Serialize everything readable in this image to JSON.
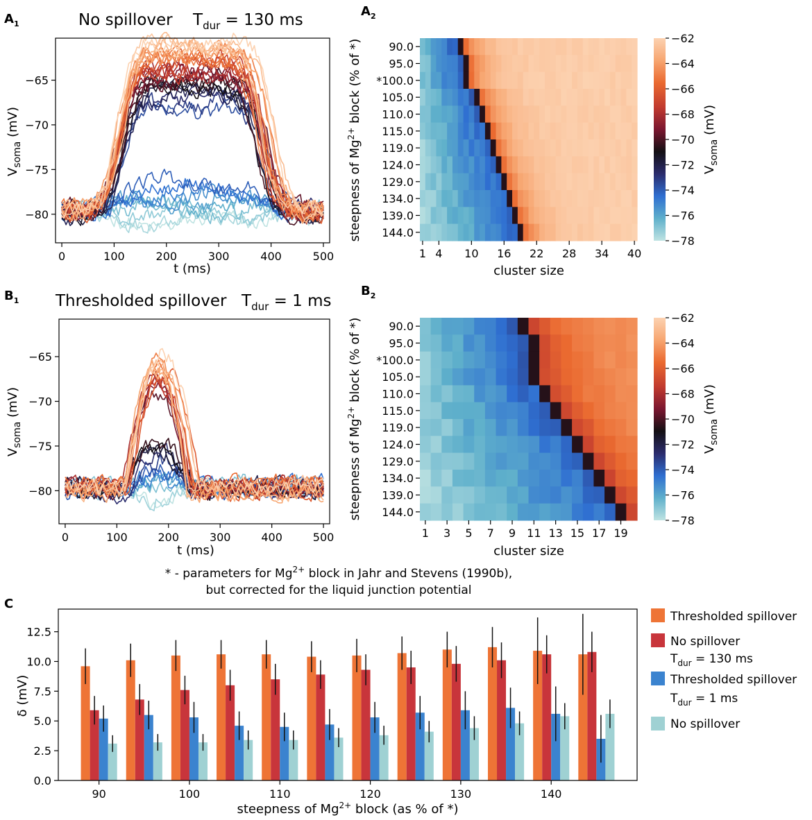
{
  "colors": {
    "orange": "#ee7436",
    "red": "#c8353b",
    "blue": "#3b83cf",
    "light_blue": "#9fd1d3",
    "err": "#111111"
  },
  "colormap": [
    "#bfe3e2",
    "#5fb0cb",
    "#2f6fd1",
    "#2b2c6d",
    "#141014",
    "#7b1730",
    "#c23b2f",
    "#ea6a30",
    "#f7a671",
    "#fcd2b1"
  ],
  "chart_data": [
    {
      "id": "A1",
      "type": "line",
      "panel_label": "A",
      "panel_sub": "1",
      "title_left": "No spillover",
      "title_right_prefix": "T",
      "title_right_sub": "dur",
      "title_right_suffix": " = 130 ms",
      "xlabel": "t (ms)",
      "ylabel_main": "V",
      "ylabel_sub": "soma",
      "ylabel_unit": " (mV)",
      "xlim": [
        -12,
        512
      ],
      "ylim": [
        -83.2,
        -60.3
      ],
      "xticks": [
        0,
        100,
        200,
        300,
        400,
        500
      ],
      "xtick_labels": [
        "0",
        "100",
        "200",
        "300",
        "400",
        "500"
      ],
      "yticks": [
        -65,
        -70,
        -75,
        -80
      ],
      "ytick_labels": [
        "−65",
        "−70",
        "−75",
        "−80"
      ],
      "onset": 112,
      "offset": 385,
      "peaks": [
        -81.0,
        -80.6,
        -80.2,
        -79.5,
        -79.0,
        -78.5,
        -78.0,
        -77.5,
        -77.0,
        -76.5,
        -68.0,
        -67.5,
        -67.0,
        -66.5,
        -66.0,
        -65.8,
        -65.5,
        -65.2,
        -65.0,
        -64.8,
        -64.5,
        -64.3,
        -64.0,
        -63.8,
        -63.5,
        -63.2,
        -63.0,
        -62.8,
        -62.5,
        -62.3,
        -62.0,
        -61.8,
        -61.6,
        -61.4,
        -61.2,
        -61.0,
        -60.9
      ]
    },
    {
      "id": "B1",
      "type": "line",
      "panel_label": "B",
      "panel_sub": "1",
      "title_left": "Thresholded spillover",
      "title_right_prefix": "T",
      "title_right_sub": "dur",
      "title_right_suffix": " = 1 ms",
      "xlabel": "t (ms)",
      "ylabel_main": "V",
      "ylabel_sub": "soma",
      "ylabel_unit": " (mV)",
      "xlim": [
        -12,
        512
      ],
      "ylim": [
        -83.7,
        -60.8
      ],
      "xticks": [
        0,
        100,
        200,
        300,
        400,
        500
      ],
      "xtick_labels": [
        "0",
        "100",
        "200",
        "300",
        "400",
        "500"
      ],
      "yticks": [
        -65,
        -70,
        -75,
        -80
      ],
      "ytick_labels": [
        "−65",
        "−70",
        "−75",
        "−80"
      ],
      "onset": 115,
      "offset": 248,
      "peaks": [
        -81.0,
        -80.5,
        -80.0,
        -79.5,
        -79.0,
        -78.5,
        -78.0,
        -77.5,
        -77.0,
        -76.5,
        -76.0,
        -75.5,
        -75.0,
        -74.0,
        -69.0,
        -68.5,
        -68.0,
        -67.5,
        -67.3,
        -67.0,
        -66.8,
        -66.5,
        -66.2,
        -66.0,
        -65.8,
        -65.5,
        -65.3,
        -65.0
      ]
    },
    {
      "id": "A2",
      "type": "heatmap",
      "panel_label": "A",
      "panel_sub": "2",
      "ylabel": "steepness of Mg2+ block (% of *)",
      "xlabel": "cluster size",
      "rows": [
        "90.0",
        "95.0",
        "*100.0",
        "105.0",
        "110.0",
        "115.0",
        "119.0",
        "124.0",
        "129.0",
        "134.0",
        "139.0",
        "144.0"
      ],
      "n_cols": 40,
      "xtick_positions": [
        1,
        4,
        10,
        16,
        22,
        28,
        34,
        40
      ],
      "xtick_labels": [
        "1",
        "4",
        "10",
        "16",
        "22",
        "28",
        "34",
        "40"
      ],
      "thresholds": [
        8,
        9,
        9,
        11,
        12,
        13,
        14,
        15,
        16,
        17,
        18,
        19
      ],
      "vmin": -78,
      "vmax": -62,
      "colorbar_label": "Vsoma (mV)",
      "colorbar_ticks": [
        -62,
        -64,
        -66,
        -68,
        -70,
        -72,
        -74,
        -76,
        -78
      ],
      "colorbar_tick_labels": [
        "−62",
        "−64",
        "−66",
        "−68",
        "−70",
        "−72",
        "−74",
        "−76",
        "−78"
      ]
    },
    {
      "id": "B2",
      "type": "heatmap",
      "panel_label": "B",
      "panel_sub": "2",
      "ylabel": "steepness of Mg2+ block (% of *)",
      "xlabel": "cluster size",
      "rows": [
        "90.0",
        "95.0",
        "*100.0",
        "105.0",
        "110.0",
        "115.0",
        "119.0",
        "124.0",
        "129.0",
        "134.0",
        "139.0",
        "144.0"
      ],
      "n_cols": 20,
      "xtick_positions": [
        1,
        3,
        5,
        7,
        9,
        11,
        13,
        15,
        17,
        19
      ],
      "xtick_labels": [
        "1",
        "3",
        "5",
        "7",
        "9",
        "11",
        "13",
        "15",
        "17",
        "19"
      ],
      "thresholds": [
        10,
        11,
        11,
        11,
        12,
        13,
        14,
        15,
        16,
        17,
        18,
        19
      ],
      "vmin": -78,
      "vmax": -62,
      "colorbar_label": "Vsoma (mV)",
      "colorbar_ticks": [
        -62,
        -64,
        -66,
        -68,
        -70,
        -72,
        -74,
        -76,
        -78
      ],
      "colorbar_tick_labels": [
        "−62",
        "−64",
        "−66",
        "−68",
        "−70",
        "−72",
        "−74",
        "−76",
        "−78"
      ]
    },
    {
      "id": "C",
      "type": "bar",
      "panel_label": "C",
      "xlabel": "steepness of Mg2+ block (as % of *)",
      "ylabel": "δ (mV)",
      "x": [
        90,
        95,
        100,
        105,
        110,
        115,
        120,
        125,
        130,
        135,
        140,
        145
      ],
      "xlim": [
        85.5,
        149.5
      ],
      "ylim": [
        0,
        14.4
      ],
      "xticks": [
        90,
        100,
        110,
        120,
        130,
        140
      ],
      "xtick_labels": [
        "90",
        "100",
        "110",
        "120",
        "130",
        "140"
      ],
      "yticks": [
        0,
        2.5,
        5.0,
        7.5,
        10.0,
        12.5
      ],
      "ytick_labels": [
        "0.0",
        "2.5",
        "5.0",
        "7.5",
        "10.0",
        "12.5"
      ],
      "series": [
        {
          "name": "Thresholded spillover",
          "values": [
            9.6,
            10.1,
            10.5,
            10.6,
            10.6,
            10.4,
            10.5,
            10.7,
            11.0,
            11.2,
            10.9,
            10.6
          ],
          "err": [
            1.5,
            1.4,
            1.3,
            1.2,
            1.2,
            1.3,
            1.4,
            1.4,
            1.5,
            1.7,
            2.8,
            3.4
          ]
        },
        {
          "name": "No spillover T_dur = 130 ms",
          "values": [
            5.9,
            6.8,
            7.6,
            8.0,
            8.5,
            8.9,
            9.3,
            9.5,
            9.8,
            10.1,
            10.6,
            10.8
          ],
          "err": [
            1.2,
            1.3,
            1.2,
            1.3,
            1.3,
            1.2,
            1.3,
            1.4,
            1.5,
            1.5,
            1.6,
            1.7
          ]
        },
        {
          "name": "Thresholded spillover T_dur = 1 ms",
          "values": [
            5.2,
            5.5,
            5.3,
            4.6,
            4.5,
            4.7,
            5.3,
            5.7,
            5.9,
            6.1,
            5.6,
            3.5
          ],
          "err": [
            1.1,
            1.2,
            1.3,
            1.2,
            1.2,
            1.3,
            1.3,
            1.4,
            1.6,
            1.7,
            2.3,
            2.0
          ]
        },
        {
          "name": "No spillover",
          "values": [
            3.1,
            3.2,
            3.2,
            3.4,
            3.4,
            3.6,
            3.8,
            4.1,
            4.4,
            4.8,
            5.4,
            5.6
          ],
          "err": [
            0.7,
            0.7,
            0.7,
            0.8,
            0.8,
            0.8,
            0.8,
            0.9,
            1.0,
            1.0,
            1.1,
            1.2
          ]
        }
      ],
      "legend": [
        {
          "line1": "Thresholded spillover",
          "line2": ""
        },
        {
          "line1": "No spillover",
          "line2_prefix": "T",
          "line2_sub": "dur",
          "line2_suffix": " = 130 ms"
        },
        {
          "line1": "Thresholded spillover",
          "line2_prefix": "T",
          "line2_sub": "dur",
          "line2_suffix": " = 1 ms"
        },
        {
          "line1": "No spillover",
          "line2": ""
        }
      ]
    }
  ],
  "footnote": {
    "line1_a": "* - parameters for Mg",
    "line1_sup": "2+",
    "line1_b": " block in Jahr and Stevens (1990b),",
    "line2": "but corrected for the liquid junction potential"
  },
  "labels": {
    "steepness_a": "steepness of Mg",
    "steepness_sup": "2+",
    "steepness_b": " block (% of *)",
    "bar_xlabel_a": "steepness of Mg",
    "bar_xlabel_sup": "2+",
    "bar_xlabel_b": " block (as % of *)",
    "cb_main": "V",
    "cb_sub": "soma",
    "cb_unit": " (mV)"
  }
}
